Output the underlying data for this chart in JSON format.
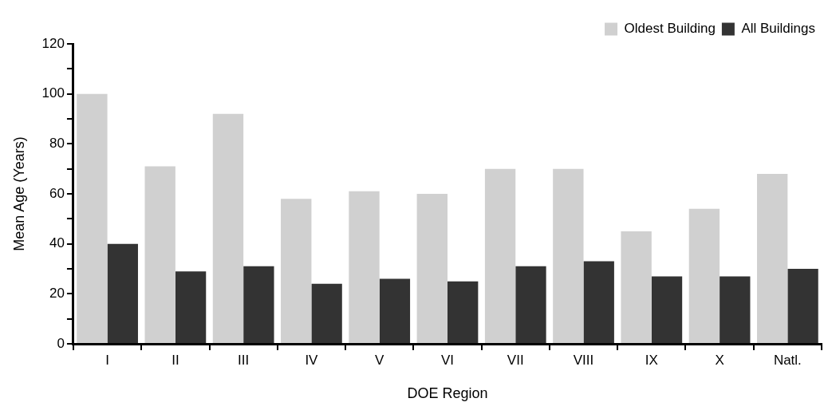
{
  "chart_data": {
    "type": "bar",
    "xlabel": "DOE Region",
    "ylabel": "Mean Age (Years)",
    "categories": [
      "I",
      "II",
      "III",
      "IV",
      "V",
      "VI",
      "VII",
      "VIII",
      "IX",
      "X",
      "Natl."
    ],
    "series": [
      {
        "name": "Oldest Building",
        "color": "#d0d0d0",
        "values": [
          100,
          71,
          92,
          58,
          61,
          60,
          70,
          70,
          45,
          54,
          68
        ]
      },
      {
        "name": "All Buildings",
        "color": "#333333",
        "values": [
          40,
          29,
          31,
          24,
          26,
          25,
          31,
          33,
          27,
          27,
          30
        ]
      }
    ],
    "ylim": [
      0,
      120
    ],
    "yticks": [
      0,
      {
        "value": 10,
        "label": null
      },
      20,
      {
        "value": 30,
        "label": null
      },
      40,
      {
        "value": 50,
        "label": null
      },
      60,
      {
        "value": 70,
        "label": null
      },
      80,
      {
        "value": 90,
        "label": null
      },
      100,
      {
        "value": 110,
        "label": null
      },
      120
    ],
    "grid": false,
    "legend": "top right"
  }
}
